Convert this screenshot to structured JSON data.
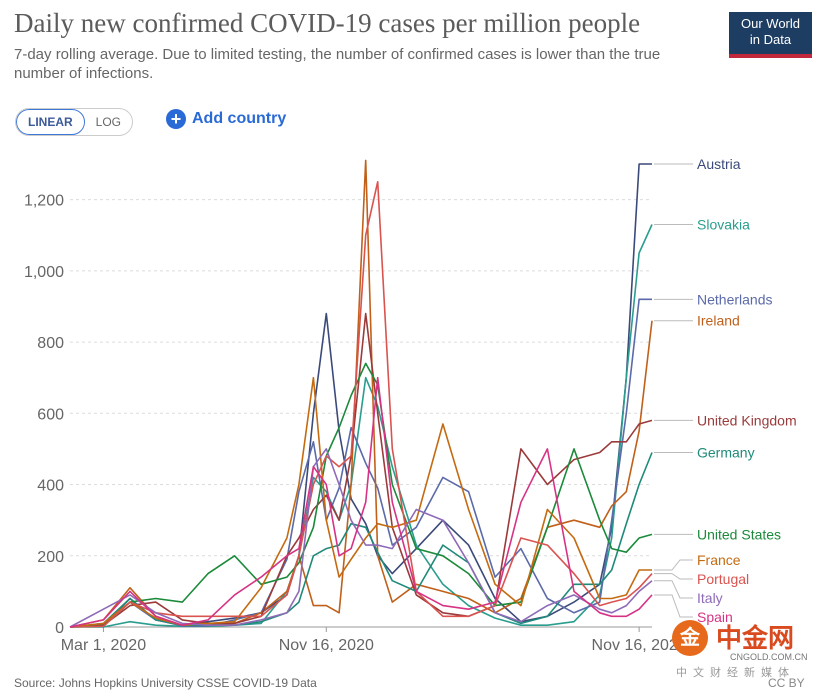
{
  "header": {
    "title": "Daily new confirmed COVID-19 cases per million people",
    "subtitle": "7-day rolling average. Due to limited testing, the number of confirmed cases is lower than the true number of infections.",
    "logo_line1": "Our World",
    "logo_line2": "in Data"
  },
  "controls": {
    "linear_label": "LINEAR",
    "log_label": "LOG",
    "add_country_label": "Add country",
    "selected_scale": "LINEAR"
  },
  "footer": {
    "source": "Source: Johns Hopkins University CSSE COVID-19 Data",
    "license": "CC BY"
  },
  "watermark": {
    "glyph": "金",
    "name": "中金网",
    "url": "CNGOLD.COM.CN",
    "tagline": "中文财经新媒体"
  },
  "chart_data": {
    "type": "line",
    "title": "Daily new confirmed COVID-19 cases per million people",
    "scale": "linear",
    "ylim": [
      0,
      1300
    ],
    "yticks": [
      0,
      200,
      400,
      600,
      800,
      "1,000",
      "1,200"
    ],
    "xticks": [
      "Mar 1, 2020",
      "Nov 16, 2020",
      "Nov 16, 2021"
    ],
    "grid": "horizontal-dashed",
    "legend": "right (line-end labels)",
    "x": [
      "2020-01-22",
      "2020-03-01",
      "2020-04-01",
      "2020-05-01",
      "2020-06-01",
      "2020-07-01",
      "2020-08-01",
      "2020-09-01",
      "2020-10-01",
      "2020-10-15",
      "2020-11-01",
      "2020-11-16",
      "2020-12-01",
      "2020-12-15",
      "2021-01-01",
      "2021-01-15",
      "2021-02-01",
      "2021-03-01",
      "2021-04-01",
      "2021-05-01",
      "2021-06-01",
      "2021-07-01",
      "2021-08-01",
      "2021-09-01",
      "2021-10-01",
      "2021-10-15",
      "2021-11-01",
      "2021-11-16",
      "2021-12-01"
    ],
    "series": [
      {
        "name": "Austria",
        "color": "#3b4a7a",
        "values": [
          0,
          5,
          80,
          20,
          5,
          15,
          25,
          40,
          90,
          200,
          600,
          880,
          550,
          360,
          290,
          200,
          150,
          220,
          300,
          230,
          80,
          15,
          30,
          70,
          120,
          280,
          700,
          1300,
          1300
        ]
      },
      {
        "name": "Slovakia",
        "color": "#2a9d8f",
        "values": [
          0,
          0,
          15,
          5,
          2,
          2,
          5,
          10,
          100,
          200,
          420,
          380,
          300,
          400,
          700,
          620,
          450,
          230,
          120,
          60,
          25,
          5,
          5,
          15,
          90,
          250,
          700,
          1050,
          1130
        ]
      },
      {
        "name": "Netherlands",
        "color": "#5b6aa8",
        "values": [
          0,
          5,
          70,
          20,
          3,
          3,
          20,
          40,
          190,
          380,
          520,
          300,
          390,
          560,
          460,
          390,
          230,
          280,
          420,
          380,
          140,
          220,
          80,
          40,
          70,
          300,
          600,
          920,
          920
        ]
      },
      {
        "name": "Ireland",
        "color": "#c0601a",
        "values": [
          0,
          20,
          110,
          30,
          5,
          5,
          10,
          40,
          100,
          200,
          60,
          60,
          40,
          400,
          1310,
          200,
          70,
          120,
          100,
          80,
          40,
          80,
          280,
          300,
          280,
          340,
          380,
          550,
          860
        ]
      },
      {
        "name": "United Kingdom",
        "color": "#9b3a3a",
        "values": [
          0,
          5,
          60,
          70,
          20,
          10,
          10,
          30,
          200,
          250,
          330,
          370,
          300,
          480,
          880,
          600,
          280,
          90,
          40,
          30,
          60,
          500,
          400,
          470,
          490,
          520,
          520,
          570,
          580
        ]
      },
      {
        "name": "Germany",
        "color": "#1f8a7a",
        "values": [
          0,
          10,
          80,
          20,
          5,
          5,
          5,
          15,
          40,
          70,
          200,
          220,
          230,
          290,
          280,
          210,
          130,
          100,
          230,
          180,
          40,
          10,
          30,
          120,
          120,
          160,
          290,
          400,
          490
        ]
      },
      {
        "name": "United States",
        "color": "#1b8a3a",
        "values": [
          0,
          2,
          70,
          80,
          70,
          150,
          200,
          120,
          140,
          180,
          280,
          480,
          560,
          650,
          740,
          680,
          400,
          220,
          200,
          150,
          60,
          70,
          280,
          500,
          300,
          220,
          210,
          250,
          260
        ]
      },
      {
        "name": "France",
        "color": "#c46b12",
        "values": [
          0,
          10,
          70,
          25,
          5,
          10,
          15,
          110,
          250,
          400,
          700,
          300,
          140,
          190,
          250,
          290,
          280,
          300,
          570,
          330,
          120,
          60,
          330,
          250,
          80,
          80,
          90,
          160,
          160
        ]
      },
      {
        "name": "Portugal",
        "color": "#d9534f",
        "values": [
          0,
          2,
          70,
          40,
          30,
          30,
          30,
          30,
          90,
          200,
          400,
          480,
          450,
          480,
          1100,
          1250,
          500,
          100,
          30,
          30,
          60,
          250,
          230,
          150,
          60,
          70,
          80,
          110,
          150
        ]
      },
      {
        "name": "Italy",
        "color": "#8e6bb8",
        "values": [
          0,
          50,
          90,
          40,
          10,
          5,
          5,
          20,
          40,
          100,
          450,
          500,
          400,
          300,
          230,
          230,
          220,
          330,
          300,
          180,
          40,
          15,
          60,
          90,
          50,
          40,
          60,
          100,
          130
        ]
      },
      {
        "name": "Spain",
        "color": "#d63384",
        "values": [
          0,
          20,
          100,
          30,
          5,
          20,
          90,
          140,
          200,
          220,
          450,
          400,
          200,
          220,
          350,
          700,
          350,
          100,
          60,
          50,
          70,
          350,
          500,
          100,
          40,
          30,
          30,
          50,
          90
        ]
      }
    ]
  }
}
